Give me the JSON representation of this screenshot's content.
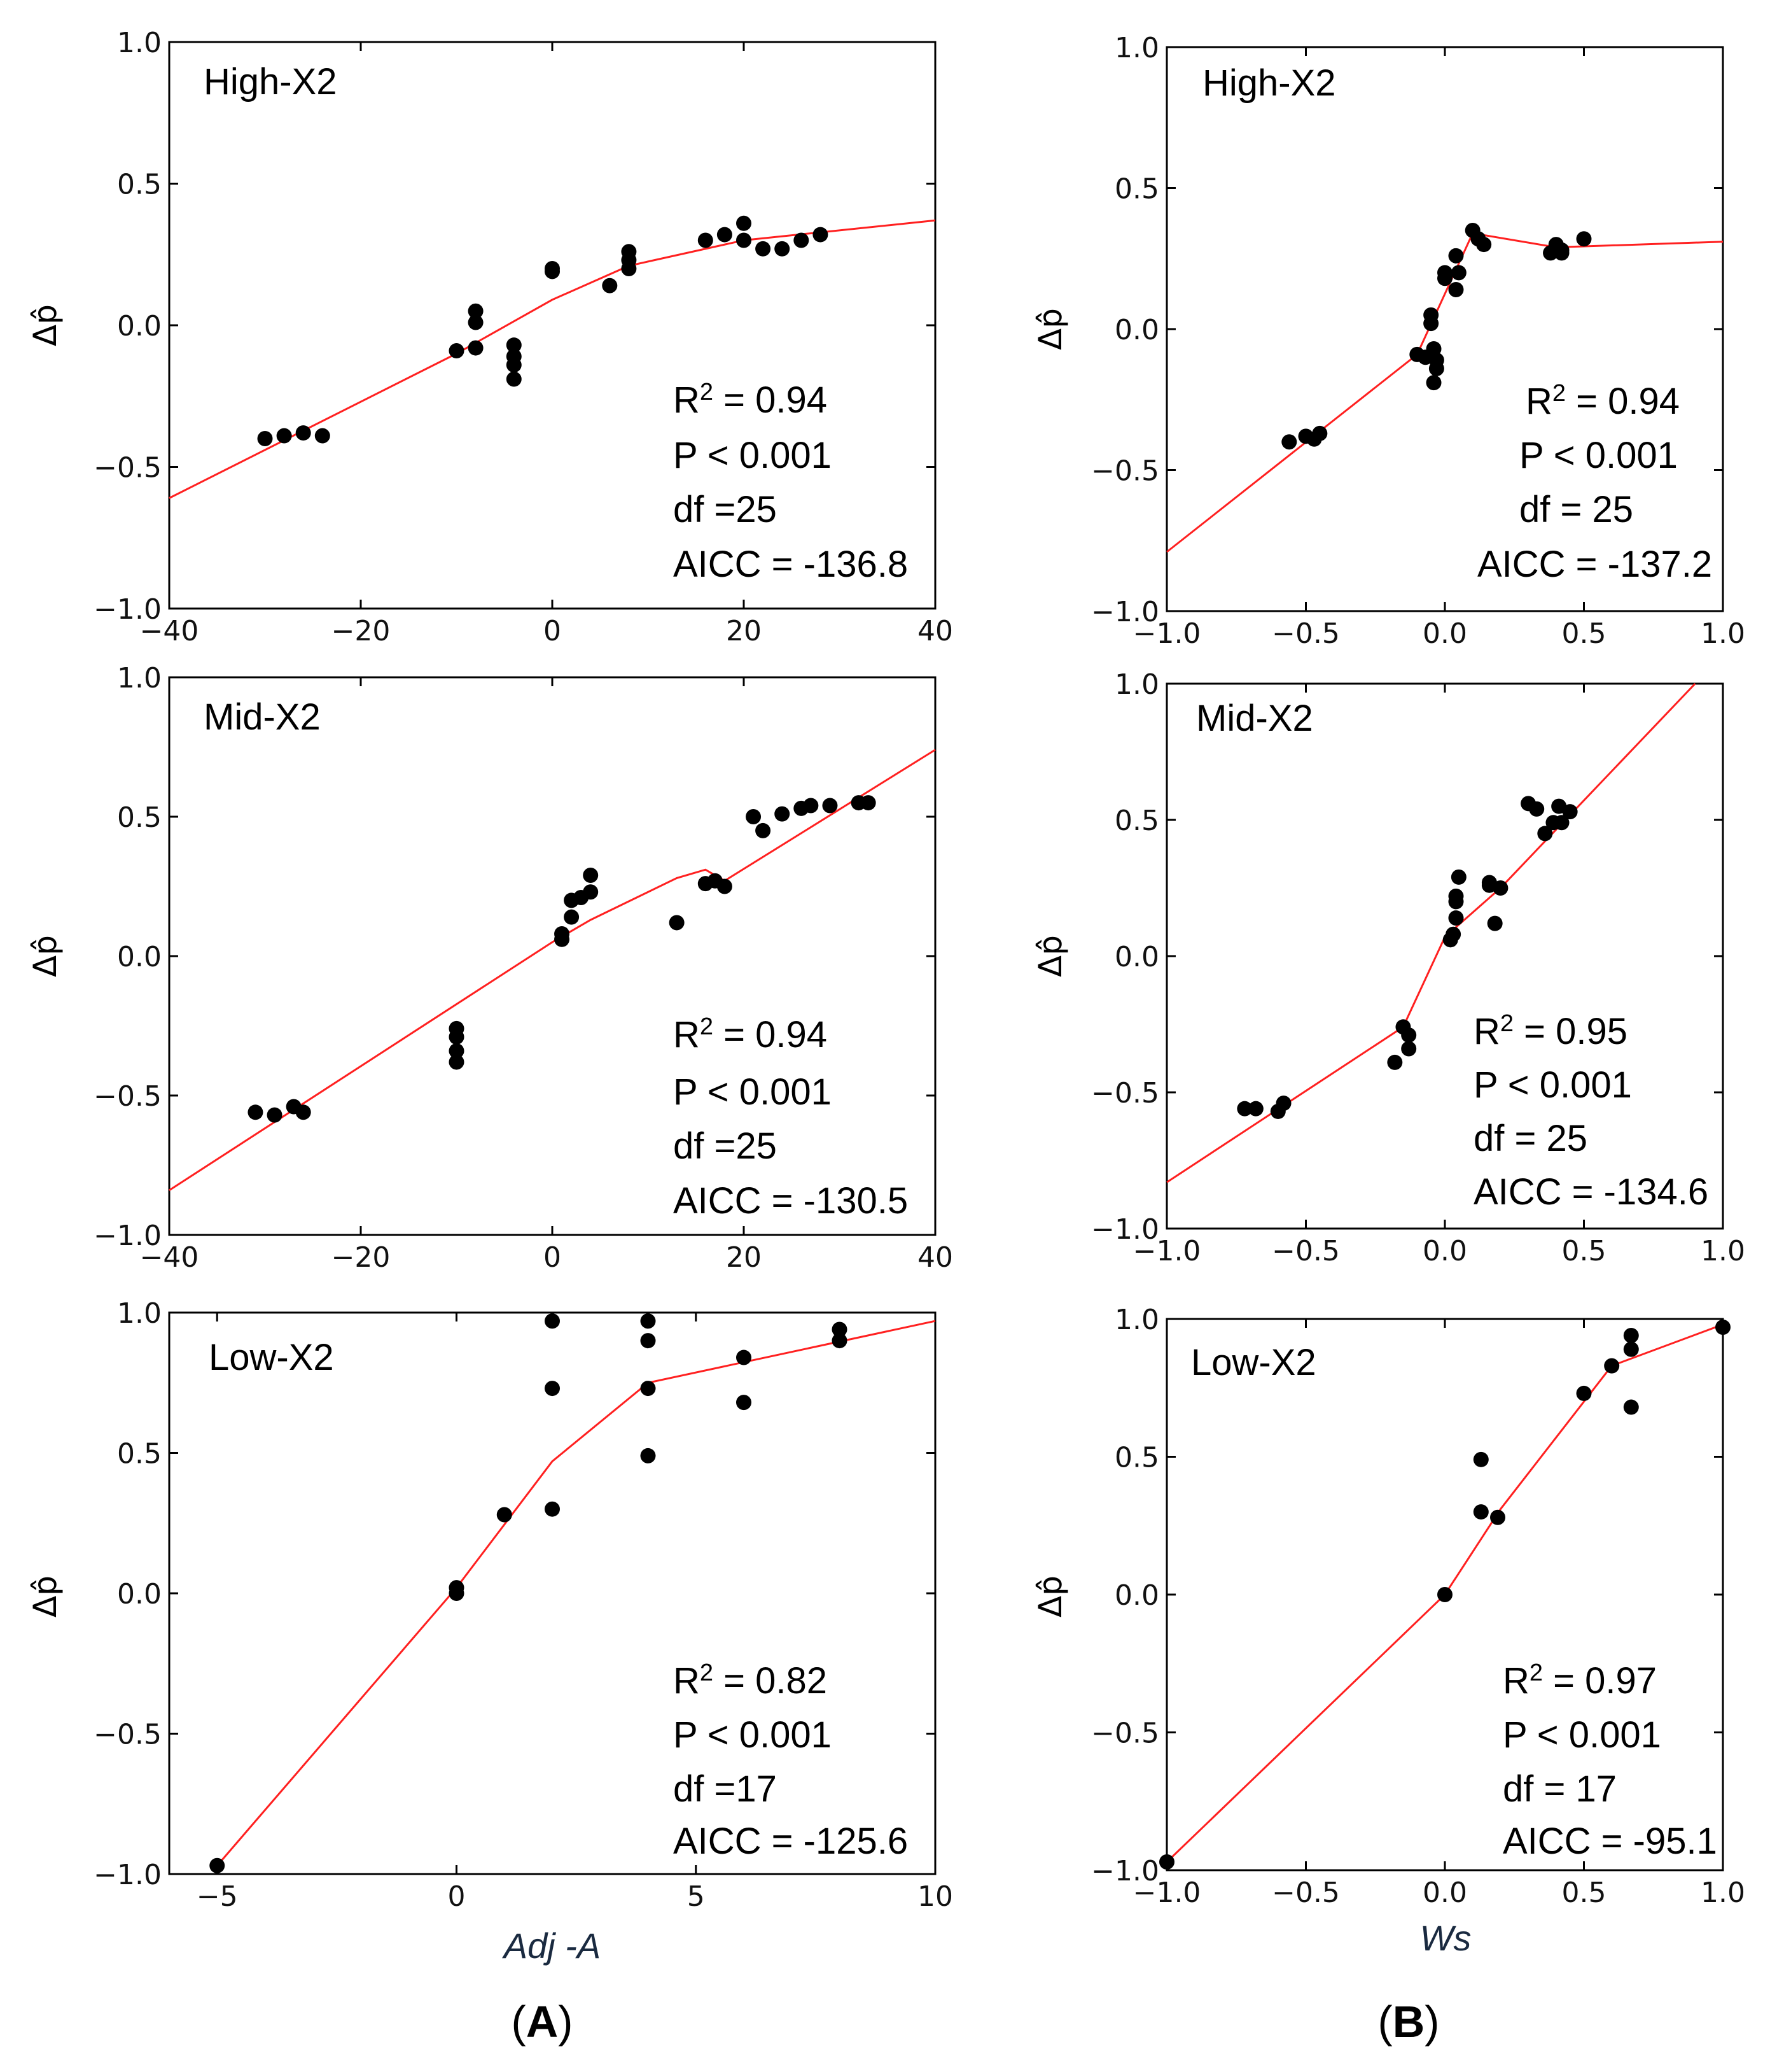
{
  "figure": {
    "caption_left_prefix": "(",
    "caption_left_letter": "A",
    "caption_left_suffix": ")",
    "caption_right_prefix": "(",
    "caption_right_letter": "B",
    "caption_right_suffix": ")"
  },
  "colors": {
    "fit_line": "#ff2020",
    "points": "#000000",
    "axes": "#000000"
  },
  "chart_data": [
    {
      "id": "A-high",
      "type": "scatter",
      "title": "High-X2",
      "xlabel": "",
      "ylabel": "Δp̂",
      "xlim": [
        -40,
        40
      ],
      "ylim": [
        -1.0,
        1.0
      ],
      "xticks": [
        -40,
        -20,
        0,
        20,
        40
      ],
      "xtick_labels": [
        "−40",
        "−20",
        "0",
        "20",
        "40"
      ],
      "yticks": [
        -1.0,
        -0.5,
        0.0,
        0.5,
        1.0
      ],
      "ytick_labels": [
        "−1.0",
        "−0.5",
        "0.0",
        "0.5",
        "1.0"
      ],
      "stats": {
        "r2_value": " = 0.94",
        "p": "P <  0.001",
        "df": "df =25",
        "aicc": "AICC = -136.8"
      },
      "points": [
        [
          -30,
          -0.4
        ],
        [
          -28,
          -0.39
        ],
        [
          -26,
          -0.38
        ],
        [
          -24,
          -0.39
        ],
        [
          -10,
          -0.09
        ],
        [
          -8,
          0.05
        ],
        [
          -8,
          0.01
        ],
        [
          -8,
          -0.08
        ],
        [
          -4,
          -0.07
        ],
        [
          -4,
          -0.11
        ],
        [
          -4,
          -0.14
        ],
        [
          -4,
          -0.19
        ],
        [
          0,
          0.2
        ],
        [
          0,
          0.19
        ],
        [
          6,
          0.14
        ],
        [
          8,
          0.26
        ],
        [
          8,
          0.23
        ],
        [
          8,
          0.2
        ],
        [
          16,
          0.3
        ],
        [
          18,
          0.32
        ],
        [
          20,
          0.36
        ],
        [
          20,
          0.3
        ],
        [
          22,
          0.27
        ],
        [
          24,
          0.27
        ],
        [
          26,
          0.3
        ],
        [
          28,
          0.32
        ]
      ],
      "fit": [
        [
          -40,
          -0.61
        ],
        [
          -10,
          -0.1
        ],
        [
          0,
          0.09
        ],
        [
          8,
          0.21
        ],
        [
          20,
          0.3
        ],
        [
          40,
          0.37
        ]
      ]
    },
    {
      "id": "B-high",
      "type": "scatter",
      "title": "High-X2",
      "xlabel": "",
      "ylabel": "Δp̂",
      "xlim": [
        -1.0,
        1.0
      ],
      "ylim": [
        -1.0,
        1.0
      ],
      "xticks": [
        -1.0,
        -0.5,
        0.0,
        0.5,
        1.0
      ],
      "xtick_labels": [
        "−1.0",
        "−0.5",
        "0.0",
        "0.5",
        "1.0"
      ],
      "yticks": [
        -1.0,
        -0.5,
        0.0,
        0.5,
        1.0
      ],
      "ytick_labels": [
        "−1.0",
        "−0.5",
        "0.0",
        "0.5",
        "1.0"
      ],
      "stats": {
        "r2_value": " = 0.94",
        "p": "P < 0.001",
        "df": "df = 25",
        "aicc": "AICC = -137.2"
      },
      "points": [
        [
          -0.56,
          -0.4
        ],
        [
          -0.5,
          -0.38
        ],
        [
          -0.47,
          -0.39
        ],
        [
          -0.45,
          -0.37
        ],
        [
          -0.1,
          -0.09
        ],
        [
          -0.07,
          -0.1
        ],
        [
          -0.05,
          0.05
        ],
        [
          -0.05,
          0.02
        ],
        [
          -0.04,
          -0.07
        ],
        [
          -0.03,
          -0.11
        ],
        [
          -0.03,
          -0.14
        ],
        [
          -0.04,
          -0.19
        ],
        [
          0.0,
          0.2
        ],
        [
          0.0,
          0.18
        ],
        [
          0.04,
          0.26
        ],
        [
          0.04,
          0.14
        ],
        [
          0.05,
          0.2
        ],
        [
          0.1,
          0.35
        ],
        [
          0.12,
          0.32
        ],
        [
          0.14,
          0.3
        ],
        [
          0.38,
          0.27
        ],
        [
          0.4,
          0.3
        ],
        [
          0.42,
          0.27
        ],
        [
          0.42,
          0.28
        ],
        [
          0.5,
          0.32
        ]
      ],
      "fit": [
        [
          -1.0,
          -0.79
        ],
        [
          -0.1,
          -0.09
        ],
        [
          0.1,
          0.34
        ],
        [
          0.4,
          0.29
        ],
        [
          1.0,
          0.31
        ]
      ]
    },
    {
      "id": "A-mid",
      "type": "scatter",
      "title": "Mid-X2",
      "xlabel": "",
      "ylabel": "Δp̂",
      "xlim": [
        -40,
        40
      ],
      "ylim": [
        -1.0,
        1.0
      ],
      "xticks": [
        -40,
        -20,
        0,
        20,
        40
      ],
      "xtick_labels": [
        "−40",
        "−20",
        "0",
        "20",
        "40"
      ],
      "yticks": [
        -1.0,
        -0.5,
        0.0,
        0.5,
        1.0
      ],
      "ytick_labels": [
        "−1.0",
        "−0.5",
        "0.0",
        "0.5",
        "1.0"
      ],
      "stats": {
        "r2_value": " = 0.94",
        "p": "P < 0.001",
        "df": "df =25",
        "aicc": "AICC = -130.5"
      },
      "points": [
        [
          -31,
          -0.56
        ],
        [
          -29,
          -0.57
        ],
        [
          -27,
          -0.54
        ],
        [
          -26,
          -0.56
        ],
        [
          -10,
          -0.26
        ],
        [
          -10,
          -0.29
        ],
        [
          -10,
          -0.34
        ],
        [
          -10,
          -0.38
        ],
        [
          1,
          0.06
        ],
        [
          1,
          0.08
        ],
        [
          2,
          0.14
        ],
        [
          2,
          0.2
        ],
        [
          3,
          0.21
        ],
        [
          4,
          0.23
        ],
        [
          4,
          0.29
        ],
        [
          13,
          0.12
        ],
        [
          16,
          0.26
        ],
        [
          17,
          0.27
        ],
        [
          18,
          0.25
        ],
        [
          21,
          0.5
        ],
        [
          22,
          0.45
        ],
        [
          24,
          0.51
        ],
        [
          26,
          0.53
        ],
        [
          27,
          0.54
        ],
        [
          29,
          0.54
        ],
        [
          32,
          0.55
        ],
        [
          33,
          0.55
        ]
      ],
      "fit": [
        [
          -40,
          -0.84
        ],
        [
          0,
          0.05
        ],
        [
          4,
          0.13
        ],
        [
          13,
          0.28
        ],
        [
          16,
          0.31
        ],
        [
          18,
          0.27
        ],
        [
          40,
          0.74
        ]
      ]
    },
    {
      "id": "B-mid",
      "type": "scatter",
      "title": "Mid-X2",
      "xlabel": "",
      "ylabel": "Δp̂",
      "xlim": [
        -1.0,
        1.0
      ],
      "ylim": [
        -1.0,
        1.0
      ],
      "xticks": [
        -1.0,
        -0.5,
        0.0,
        0.5,
        1.0
      ],
      "xtick_labels": [
        "−1.0",
        "−0.5",
        "0.0",
        "0.5",
        "1.0"
      ],
      "yticks": [
        -1.0,
        -0.5,
        0.0,
        0.5,
        1.0
      ],
      "ytick_labels": [
        "−1.0",
        "−0.5",
        "0.0",
        "0.5",
        "1.0"
      ],
      "stats": {
        "r2_value": " = 0.95",
        "p": "P < 0.001",
        "df": "df = 25",
        "aicc": "AICC = -134.6"
      },
      "points": [
        [
          -0.72,
          -0.56
        ],
        [
          -0.68,
          -0.56
        ],
        [
          -0.6,
          -0.57
        ],
        [
          -0.58,
          -0.54
        ],
        [
          -0.18,
          -0.39
        ],
        [
          -0.15,
          -0.26
        ],
        [
          -0.13,
          -0.29
        ],
        [
          -0.13,
          -0.34
        ],
        [
          0.02,
          0.06
        ],
        [
          0.03,
          0.08
        ],
        [
          0.04,
          0.14
        ],
        [
          0.04,
          0.2
        ],
        [
          0.04,
          0.22
        ],
        [
          0.05,
          0.29
        ],
        [
          0.16,
          0.27
        ],
        [
          0.16,
          0.26
        ],
        [
          0.18,
          0.12
        ],
        [
          0.2,
          0.25
        ],
        [
          0.3,
          0.56
        ],
        [
          0.33,
          0.54
        ],
        [
          0.36,
          0.45
        ],
        [
          0.39,
          0.49
        ],
        [
          0.41,
          0.55
        ],
        [
          0.42,
          0.49
        ],
        [
          0.45,
          0.53
        ]
      ],
      "fit": [
        [
          -1.0,
          -0.83
        ],
        [
          -0.15,
          -0.26
        ],
        [
          0.0,
          0.07
        ],
        [
          0.2,
          0.25
        ],
        [
          0.9,
          1.0
        ]
      ]
    },
    {
      "id": "A-low",
      "type": "scatter",
      "title": "Low-X2",
      "xlabel": "Adj -A",
      "ylabel": "Δp̂",
      "xlim": [
        -6,
        10
      ],
      "ylim": [
        -1.0,
        1.0
      ],
      "xticks": [
        -5,
        0,
        5,
        10
      ],
      "xtick_labels": [
        "−5",
        "0",
        "5",
        "10"
      ],
      "yticks": [
        -1.0,
        -0.5,
        0.0,
        0.5,
        1.0
      ],
      "ytick_labels": [
        "−1.0",
        "−0.5",
        "0.0",
        "0.5",
        "1.0"
      ],
      "stats": {
        "r2_value": " = 0.82",
        "p": "P < 0.001",
        "df": "df =17",
        "aicc": "AICC = -125.6"
      },
      "points": [
        [
          -5,
          -0.97
        ],
        [
          0,
          0.0
        ],
        [
          0,
          0.02
        ],
        [
          1,
          0.28
        ],
        [
          2,
          0.97
        ],
        [
          2,
          0.73
        ],
        [
          2,
          0.3
        ],
        [
          4,
          0.97
        ],
        [
          4,
          0.9
        ],
        [
          4,
          0.73
        ],
        [
          4,
          0.49
        ],
        [
          6,
          0.84
        ],
        [
          6,
          0.68
        ],
        [
          8,
          0.94
        ],
        [
          8,
          0.9
        ]
      ],
      "fit": [
        [
          -5,
          -0.97
        ],
        [
          0,
          0.02
        ],
        [
          2,
          0.47
        ],
        [
          4,
          0.75
        ],
        [
          10,
          0.97
        ]
      ]
    },
    {
      "id": "B-low",
      "type": "scatter",
      "title": "Low-X2",
      "xlabel": "Ws",
      "ylabel": "Δp̂",
      "xlim": [
        -1.0,
        1.0
      ],
      "ylim": [
        -1.0,
        1.0
      ],
      "xticks": [
        -1.0,
        -0.5,
        0.0,
        0.5,
        1.0
      ],
      "xtick_labels": [
        "−1.0",
        "−0.5",
        "0.0",
        "0.5",
        "1.0"
      ],
      "yticks": [
        -1.0,
        -0.5,
        0.0,
        0.5,
        1.0
      ],
      "ytick_labels": [
        "−1.0",
        "−0.5",
        "0.0",
        "0.5",
        "1.0"
      ],
      "stats": {
        "r2_value": " = 0.97",
        "p": "P < 0.001",
        "df": "df = 17",
        "aicc": "AICC = -95.1"
      },
      "points": [
        [
          -1.0,
          -0.97
        ],
        [
          0.0,
          0.0
        ],
        [
          0.13,
          0.49
        ],
        [
          0.13,
          0.3
        ],
        [
          0.19,
          0.28
        ],
        [
          0.5,
          0.73
        ],
        [
          0.6,
          0.83
        ],
        [
          0.67,
          0.94
        ],
        [
          0.67,
          0.89
        ],
        [
          0.67,
          0.68
        ],
        [
          1.0,
          0.97
        ]
      ],
      "fit": [
        [
          -1.0,
          -0.97
        ],
        [
          0.0,
          0.0
        ],
        [
          0.2,
          0.31
        ],
        [
          0.5,
          0.7
        ],
        [
          0.6,
          0.83
        ],
        [
          1.0,
          0.98
        ]
      ]
    }
  ]
}
